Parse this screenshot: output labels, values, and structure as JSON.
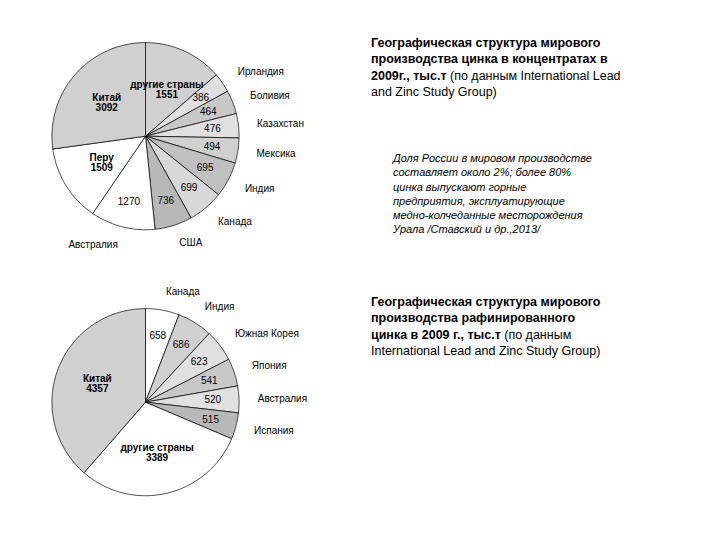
{
  "chart_data": [
    {
      "type": "pie",
      "title": "Географическая структура мирового\nпроизводства цинка в концентратах в\n2009г., тыс.т",
      "subtitle": "(по данным International Lead\nand Zinc Study Group)",
      "annotations": [
        "Доля России в мировом производстве\nсоставляет около 2%; более 80%\nцинка выпускают горные\nпредприятия, эксплуатирующие\nмедно-колчеданные месторождения\nУрала /Ставский и др.,2013/"
      ],
      "categories": [
        "другие страны",
        "Ирландия",
        "Боливия",
        "Казахстан",
        "Мексика",
        "Индия",
        "Канада",
        "США",
        "Австралия",
        "Перу",
        "Китай"
      ],
      "values": [
        1551,
        386,
        464,
        476,
        494,
        695,
        699,
        736,
        1270,
        1509,
        3092
      ],
      "colors": [
        "#d0d0d0",
        "#e0e0e0",
        "#c8c8c8",
        "#e0e0e0",
        "#d0d0d0",
        "#c0c0c0",
        "#d8d8d8",
        "#b8b8b8",
        "#ffffff",
        "#ffffff",
        "#d0d0d0"
      ],
      "data_labels": true
    },
    {
      "type": "pie",
      "title": "Географическая структура мирового\nпроизводства рафинированного\nцинка в 2009 г., тыс.т",
      "subtitle": "(по данным\nInternational Lead and Zinc Study Group)",
      "categories": [
        "Канада",
        "Индия",
        "Южная Корея",
        "Япония",
        "Австралия",
        "Испания",
        "другие страны",
        "Китай"
      ],
      "values": [
        658,
        686,
        623,
        541,
        520,
        515,
        3389,
        4357
      ],
      "colors": [
        "#ffffff",
        "#d0d0d0",
        "#e0e0e0",
        "#c8c8c8",
        "#e0e0e0",
        "#b8b8b8",
        "#ffffff",
        "#d0d0d0"
      ],
      "data_labels": true
    }
  ]
}
